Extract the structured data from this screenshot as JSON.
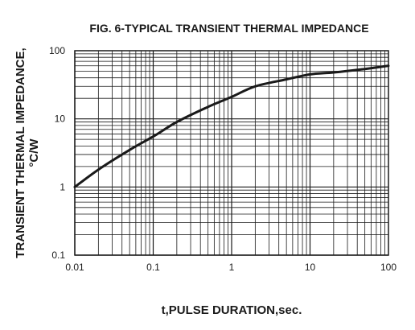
{
  "chart_data": {
    "type": "line",
    "title": "FIG. 6-TYPICAL TRANSIENT THERMAL IMPEDANCE",
    "xlabel": "t,PULSE DURATION,sec.",
    "ylabel_line1": "TRANSIENT THERMAL IMPEDANCE,",
    "ylabel_line2": "°C/W",
    "x_scale": "log",
    "y_scale": "log",
    "xlim": [
      0.01,
      100
    ],
    "ylim": [
      0.1,
      100
    ],
    "x_ticks": [
      0.01,
      0.1,
      1,
      10,
      100
    ],
    "x_tick_labels": [
      "0.01",
      "0.1",
      "1",
      "10",
      "100"
    ],
    "y_ticks": [
      0.1,
      1,
      10,
      100
    ],
    "y_tick_labels": [
      "0.1",
      "1",
      "10",
      "100"
    ],
    "grid": true,
    "series": [
      {
        "x": [
          0.01,
          0.02,
          0.05,
          0.1,
          0.2,
          0.5,
          1,
          2,
          5,
          10,
          20,
          50,
          100
        ],
        "y": [
          1.0,
          1.8,
          3.5,
          5.5,
          9,
          15,
          21,
          30,
          38,
          45,
          48,
          54,
          60
        ]
      }
    ]
  }
}
